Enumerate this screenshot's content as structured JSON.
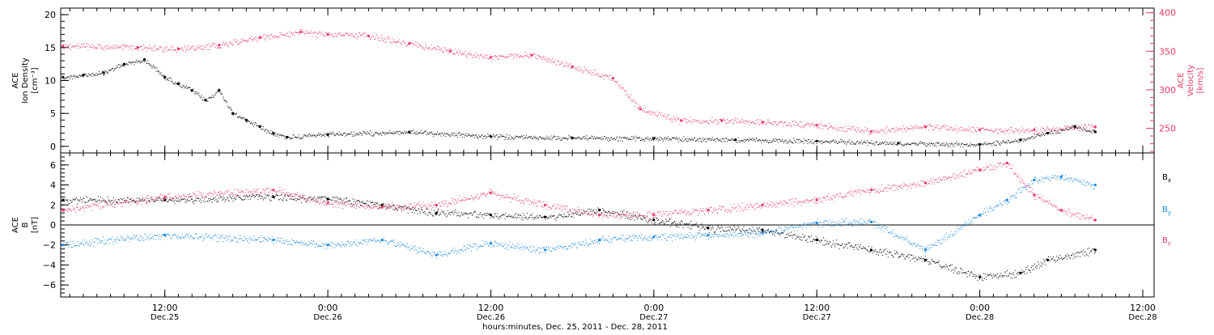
{
  "colors": {
    "black": "#000000",
    "pink": "#e83a64",
    "blue": "#1c88e0"
  },
  "time_axis": {
    "range": [
      "2011-12-25T04:20",
      "2011-12-28T12:50"
    ],
    "ticks": [
      {
        "time": "2011-12-25T12:00",
        "label_time": "12:00",
        "label_date": "Dec.25"
      },
      {
        "time": "2011-12-26T00:00",
        "label_time": "0:00",
        "label_date": "Dec.26"
      },
      {
        "time": "2011-12-26T12:00",
        "label_time": "12:00",
        "label_date": "Dec.26"
      },
      {
        "time": "2011-12-27T00:00",
        "label_time": "0:00",
        "label_date": "Dec.27"
      },
      {
        "time": "2011-12-27T12:00",
        "label_time": "12:00",
        "label_date": "Dec.27"
      },
      {
        "time": "2011-12-28T00:00",
        "label_time": "0:00",
        "label_date": "Dec.28"
      },
      {
        "time": "2011-12-28T12:00",
        "label_time": "12:00",
        "label_date": "Dec.28"
      }
    ],
    "title": "hours:minutes, Dec. 25, 2011 - Dec. 28, 2011"
  },
  "chart_data": [
    {
      "type": "scatter",
      "ylabel_lines": [
        "ACE",
        "Ion Density",
        "[cm⁻³]"
      ],
      "ylim": [
        -1,
        21
      ],
      "yticks": [
        0,
        5,
        10,
        15,
        20
      ],
      "y2label_lines": [
        "ACE",
        "Velocity",
        "[km/s]"
      ],
      "y2lim": [
        218,
        406
      ],
      "y2ticks": [
        250,
        300,
        350,
        400
      ],
      "series": [
        {
          "axis": "left",
          "points": [
            [
              "2011-12-25T04:30",
              10.5
            ],
            [
              "2011-12-25T06:00",
              10.8
            ],
            [
              "2011-12-25T07:30",
              11.2
            ],
            [
              "2011-12-25T09:00",
              12.5
            ],
            [
              "2011-12-25T10:30",
              13.2
            ],
            [
              "2011-12-25T12:00",
              10.5
            ],
            [
              "2011-12-25T13:00",
              9.5
            ],
            [
              "2011-12-25T14:00",
              8.5
            ],
            [
              "2011-12-25T15:00",
              7.0
            ],
            [
              "2011-12-25T16:00",
              8.5
            ],
            [
              "2011-12-25T17:00",
              5.0
            ],
            [
              "2011-12-25T18:00",
              4.0
            ],
            [
              "2011-12-25T19:00",
              3.0
            ],
            [
              "2011-12-25T20:00",
              2.0
            ],
            [
              "2011-12-25T21:00",
              1.4
            ],
            [
              "2011-12-26T00:00",
              1.8
            ],
            [
              "2011-12-26T06:00",
              2.2
            ],
            [
              "2011-12-26T12:00",
              1.5
            ],
            [
              "2011-12-26T18:00",
              1.3
            ],
            [
              "2011-12-27T00:00",
              1.2
            ],
            [
              "2011-12-27T06:00",
              1.0
            ],
            [
              "2011-12-27T12:00",
              0.8
            ],
            [
              "2011-12-27T18:00",
              0.5
            ],
            [
              "2011-12-28T00:00",
              0.3
            ],
            [
              "2011-12-28T03:00",
              1.0
            ],
            [
              "2011-12-28T05:00",
              2.0
            ],
            [
              "2011-12-28T07:00",
              3.0
            ],
            [
              "2011-12-28T08:30",
              2.2
            ]
          ]
        },
        {
          "axis": "right",
          "points": [
            [
              "2011-12-25T04:30",
              357
            ],
            [
              "2011-12-25T10:00",
              355
            ],
            [
              "2011-12-25T13:00",
              353
            ],
            [
              "2011-12-25T16:00",
              358
            ],
            [
              "2011-12-25T19:00",
              368
            ],
            [
              "2011-12-25T22:00",
              375
            ],
            [
              "2011-12-26T00:00",
              372
            ],
            [
              "2011-12-26T03:00",
              370
            ],
            [
              "2011-12-26T06:00",
              360
            ],
            [
              "2011-12-26T09:00",
              350
            ],
            [
              "2011-12-26T12:00",
              342
            ],
            [
              "2011-12-26T15:00",
              345
            ],
            [
              "2011-12-26T18:00",
              330
            ],
            [
              "2011-12-26T21:00",
              315
            ],
            [
              "2011-12-26T23:00",
              275
            ],
            [
              "2011-12-27T02:00",
              260
            ],
            [
              "2011-12-27T05:00",
              260
            ],
            [
              "2011-12-27T08:00",
              258
            ],
            [
              "2011-12-27T12:00",
              254
            ],
            [
              "2011-12-27T16:00",
              246
            ],
            [
              "2011-12-27T20:00",
              252
            ],
            [
              "2011-12-28T00:00",
              248
            ],
            [
              "2011-12-28T04:00",
              248
            ],
            [
              "2011-12-28T08:30",
              252
            ]
          ]
        }
      ]
    },
    {
      "type": "scatter",
      "ylabel_lines": [
        "ACE",
        "B",
        "[nT]"
      ],
      "ylim": [
        -7.2,
        7.2
      ],
      "yticks": [
        -6,
        -4,
        -2,
        0,
        2,
        4,
        6
      ],
      "zero_line": true,
      "legend_placement": "right",
      "series": [
        {
          "name": "Bx",
          "legend": "Bx",
          "points": [
            [
              "2011-12-25T04:30",
              2.5
            ],
            [
              "2011-12-25T12:00",
              2.5
            ],
            [
              "2011-12-25T20:00",
              2.8
            ],
            [
              "2011-12-26T00:00",
              2.6
            ],
            [
              "2011-12-26T04:00",
              2.0
            ],
            [
              "2011-12-26T08:00",
              1.2
            ],
            [
              "2011-12-26T12:00",
              1.0
            ],
            [
              "2011-12-26T16:00",
              0.8
            ],
            [
              "2011-12-26T20:00",
              1.5
            ],
            [
              "2011-12-27T00:00",
              0.5
            ],
            [
              "2011-12-27T04:00",
              -0.3
            ],
            [
              "2011-12-27T08:00",
              -0.5
            ],
            [
              "2011-12-27T12:00",
              -1.5
            ],
            [
              "2011-12-27T16:00",
              -2.5
            ],
            [
              "2011-12-27T20:00",
              -3.5
            ],
            [
              "2011-12-28T00:00",
              -5.2
            ],
            [
              "2011-12-28T03:00",
              -4.8
            ],
            [
              "2011-12-28T05:00",
              -3.5
            ],
            [
              "2011-12-28T08:30",
              -2.5
            ]
          ]
        },
        {
          "name": "By",
          "legend": "By",
          "points": [
            [
              "2011-12-25T04:30",
              -2.0
            ],
            [
              "2011-12-25T12:00",
              -1.0
            ],
            [
              "2011-12-25T20:00",
              -1.5
            ],
            [
              "2011-12-26T00:00",
              -2.0
            ],
            [
              "2011-12-26T04:00",
              -1.5
            ],
            [
              "2011-12-26T08:00",
              -3.0
            ],
            [
              "2011-12-26T12:00",
              -1.8
            ],
            [
              "2011-12-26T16:00",
              -2.5
            ],
            [
              "2011-12-26T20:00",
              -1.5
            ],
            [
              "2011-12-27T00:00",
              -1.2
            ],
            [
              "2011-12-27T04:00",
              -1.0
            ],
            [
              "2011-12-27T08:00",
              -0.8
            ],
            [
              "2011-12-27T12:00",
              0.2
            ],
            [
              "2011-12-27T16:00",
              0.3
            ],
            [
              "2011-12-27T20:00",
              -2.5
            ],
            [
              "2011-12-28T00:00",
              1.0
            ],
            [
              "2011-12-28T02:00",
              2.5
            ],
            [
              "2011-12-28T04:00",
              4.5
            ],
            [
              "2011-12-28T06:00",
              4.8
            ],
            [
              "2011-12-28T08:30",
              4.0
            ]
          ]
        },
        {
          "name": "Bz",
          "legend": "Bz",
          "points": [
            [
              "2011-12-25T04:30",
              1.5
            ],
            [
              "2011-12-25T12:00",
              2.8
            ],
            [
              "2011-12-25T20:00",
              3.5
            ],
            [
              "2011-12-26T00:00",
              2.2
            ],
            [
              "2011-12-26T04:00",
              1.8
            ],
            [
              "2011-12-26T08:00",
              2.0
            ],
            [
              "2011-12-26T12:00",
              3.2
            ],
            [
              "2011-12-26T16:00",
              2.0
            ],
            [
              "2011-12-26T20:00",
              1.0
            ],
            [
              "2011-12-27T00:00",
              1.0
            ],
            [
              "2011-12-27T04:00",
              1.5
            ],
            [
              "2011-12-27T08:00",
              2.0
            ],
            [
              "2011-12-27T12:00",
              2.5
            ],
            [
              "2011-12-27T16:00",
              3.5
            ],
            [
              "2011-12-27T20:00",
              4.2
            ],
            [
              "2011-12-28T00:00",
              5.5
            ],
            [
              "2011-12-28T02:00",
              6.2
            ],
            [
              "2011-12-28T04:00",
              3.0
            ],
            [
              "2011-12-28T06:00",
              1.5
            ],
            [
              "2011-12-28T08:30",
              0.5
            ]
          ]
        }
      ]
    }
  ]
}
